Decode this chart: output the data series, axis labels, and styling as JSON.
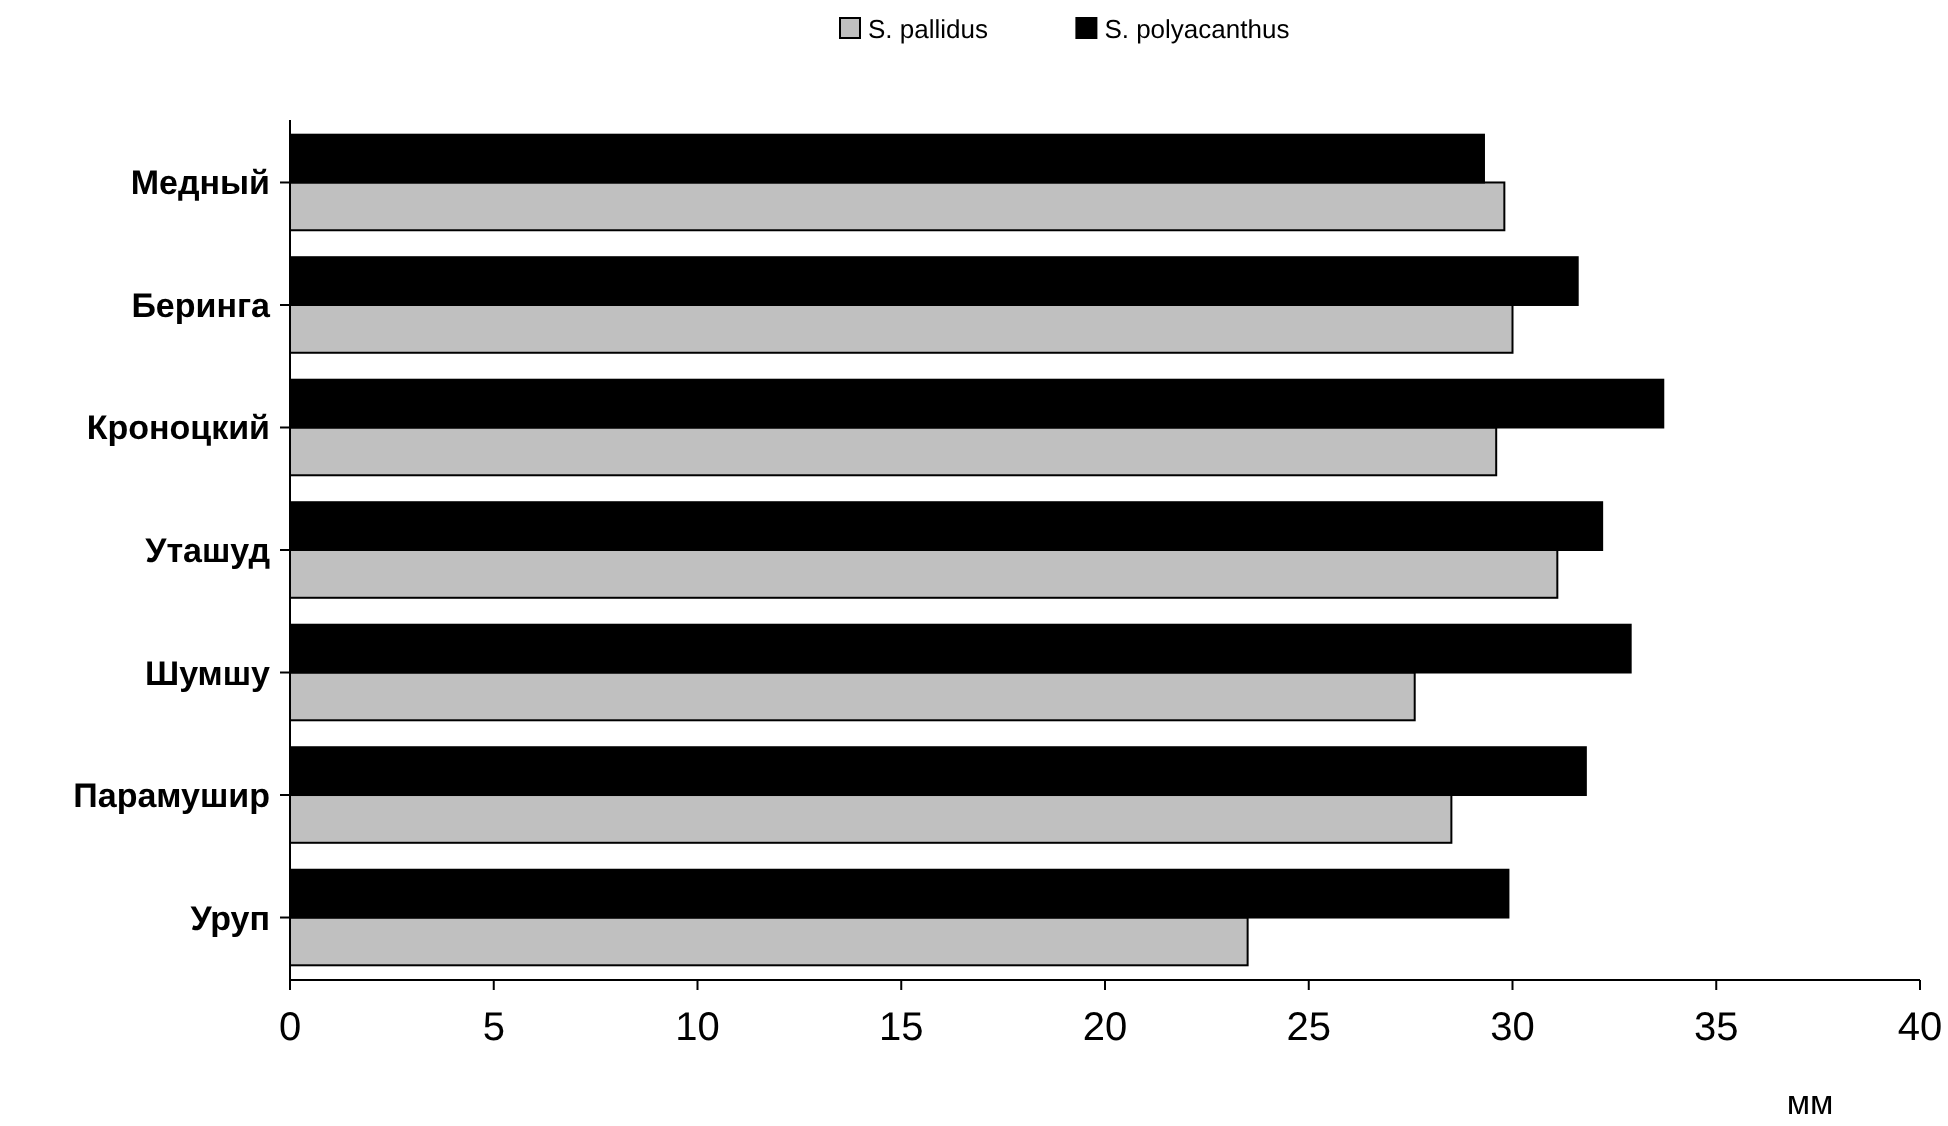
{
  "chart_data": {
    "type": "bar",
    "orientation": "horizontal",
    "categories": [
      "Медный",
      "Беринга",
      "Кроноцкий",
      "Уташуд",
      "Шумшу",
      "Парамушир",
      "Уруп"
    ],
    "series": [
      {
        "name": "S. pallidus",
        "color": "#c0c0c0",
        "values": [
          29.8,
          30.0,
          29.6,
          31.1,
          27.6,
          28.5,
          23.5
        ]
      },
      {
        "name": "S. polyacanthus",
        "color": "#000000",
        "values": [
          29.3,
          31.6,
          33.7,
          32.2,
          32.9,
          31.8,
          29.9
        ]
      }
    ],
    "xlim": [
      0,
      40
    ],
    "xticks": [
      0,
      5,
      10,
      15,
      20,
      25,
      30,
      35,
      40
    ],
    "xlabel": "мм",
    "grid": false,
    "legend": "top"
  }
}
